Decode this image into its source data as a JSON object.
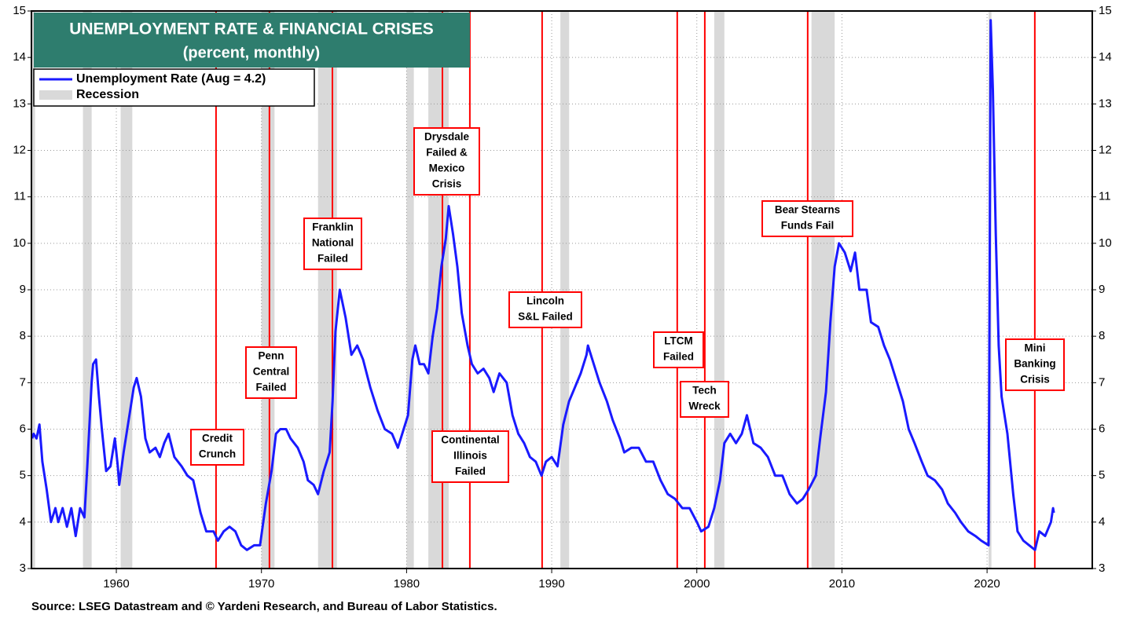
{
  "chart_data": {
    "type": "line",
    "title": "UNEMPLOYMENT RATE & FINANCIAL CRISES",
    "subtitle": "(percent, monthly)",
    "source": "Source: LSEG Datastream and © Yardeni Research, and Bureau of Labor Statistics.",
    "xlim": [
      1954.15,
      2027.25
    ],
    "ylim": [
      3,
      15
    ],
    "xticks": [
      1960,
      1970,
      1980,
      1990,
      2000,
      2010,
      2020
    ],
    "yticks": [
      3,
      4,
      5,
      6,
      7,
      8,
      9,
      10,
      11,
      12,
      13,
      14,
      15
    ],
    "grid": true,
    "x": [
      1954.2,
      1954.3,
      1954.5,
      1954.7,
      1954.9,
      1955.2,
      1955.5,
      1955.8,
      1956.0,
      1956.3,
      1956.6,
      1956.9,
      1957.2,
      1957.5,
      1957.8,
      1958.0,
      1958.3,
      1958.4,
      1958.6,
      1958.8,
      1959.0,
      1959.3,
      1959.6,
      1959.9,
      1960.1,
      1960.2,
      1960.5,
      1960.9,
      1961.2,
      1961.4,
      1961.7,
      1962.0,
      1962.3,
      1962.7,
      1963.0,
      1963.3,
      1963.6,
      1964.0,
      1964.5,
      1964.9,
      1965.3,
      1965.8,
      1966.2,
      1966.7,
      1967.0,
      1967.4,
      1967.8,
      1968.2,
      1968.6,
      1969.0,
      1969.5,
      1969.9,
      1970.3,
      1970.7,
      1971.0,
      1971.3,
      1971.7,
      1972.0,
      1972.5,
      1972.9,
      1973.2,
      1973.6,
      1973.9,
      1974.3,
      1974.7,
      1974.9,
      1975.1,
      1975.4,
      1975.8,
      1976.2,
      1976.6,
      1977.0,
      1977.5,
      1978.0,
      1978.5,
      1979.0,
      1979.4,
      1979.8,
      1980.1,
      1980.4,
      1980.6,
      1980.9,
      1981.2,
      1981.5,
      1981.8,
      1982.1,
      1982.4,
      1982.7,
      1982.9,
      1983.2,
      1983.5,
      1983.8,
      1984.2,
      1984.5,
      1984.9,
      1985.3,
      1985.7,
      1986.0,
      1986.4,
      1986.9,
      1987.3,
      1987.7,
      1988.1,
      1988.5,
      1988.9,
      1989.3,
      1989.6,
      1990.0,
      1990.4,
      1990.8,
      1991.2,
      1991.6,
      1992.0,
      1992.4,
      1992.5,
      1992.9,
      1993.3,
      1993.8,
      1994.2,
      1994.7,
      1995.0,
      1995.5,
      1996.0,
      1996.5,
      1997.0,
      1997.5,
      1998.0,
      1998.5,
      1999.0,
      1999.5,
      2000.0,
      2000.3,
      2000.8,
      2001.2,
      2001.6,
      2001.9,
      2002.3,
      2002.7,
      2003.1,
      2003.45,
      2003.9,
      2004.4,
      2004.9,
      2005.4,
      2005.9,
      2006.4,
      2006.9,
      2007.3,
      2007.7,
      2008.2,
      2008.5,
      2008.9,
      2009.2,
      2009.5,
      2009.8,
      2010.2,
      2010.6,
      2010.9,
      2011.2,
      2011.7,
      2012.0,
      2012.5,
      2012.9,
      2013.3,
      2013.8,
      2014.2,
      2014.6,
      2015.0,
      2015.5,
      2015.9,
      2016.4,
      2016.9,
      2017.3,
      2017.8,
      2018.2,
      2018.7,
      2019.2,
      2019.6,
      2020.1,
      2020.25,
      2020.4,
      2020.6,
      2020.8,
      2021.0,
      2021.4,
      2021.8,
      2022.1,
      2022.5,
      2022.9,
      2023.3,
      2023.6,
      2024.0,
      2024.4,
      2024.55,
      2024.6
    ],
    "series": [
      {
        "name": "Unemployment Rate (Aug = 4.2)",
        "color": "#1a1aff",
        "values": [
          5.8,
          5.9,
          5.8,
          6.1,
          5.3,
          4.7,
          4.0,
          4.3,
          4.0,
          4.3,
          3.9,
          4.3,
          3.7,
          4.3,
          4.1,
          5.2,
          7.0,
          7.4,
          7.5,
          6.7,
          6.0,
          5.1,
          5.2,
          5.8,
          5.2,
          4.8,
          5.5,
          6.3,
          6.9,
          7.1,
          6.7,
          5.8,
          5.5,
          5.6,
          5.4,
          5.7,
          5.9,
          5.4,
          5.2,
          5.0,
          4.9,
          4.2,
          3.8,
          3.8,
          3.6,
          3.8,
          3.9,
          3.8,
          3.5,
          3.4,
          3.5,
          3.5,
          4.4,
          5.1,
          5.9,
          6.0,
          6.0,
          5.8,
          5.6,
          5.3,
          4.9,
          4.8,
          4.6,
          5.1,
          5.5,
          6.6,
          8.1,
          9.0,
          8.4,
          7.6,
          7.8,
          7.5,
          6.9,
          6.4,
          6.0,
          5.9,
          5.6,
          6.0,
          6.3,
          7.5,
          7.8,
          7.4,
          7.4,
          7.2,
          8.0,
          8.6,
          9.5,
          10.1,
          10.8,
          10.2,
          9.5,
          8.5,
          7.8,
          7.4,
          7.2,
          7.3,
          7.1,
          6.8,
          7.2,
          7.0,
          6.3,
          5.9,
          5.7,
          5.4,
          5.3,
          5.0,
          5.3,
          5.4,
          5.2,
          6.1,
          6.6,
          6.9,
          7.2,
          7.6,
          7.8,
          7.4,
          7.0,
          6.6,
          6.2,
          5.8,
          5.5,
          5.6,
          5.6,
          5.3,
          5.3,
          4.9,
          4.6,
          4.5,
          4.3,
          4.3,
          4.0,
          3.8,
          3.9,
          4.3,
          4.9,
          5.7,
          5.9,
          5.7,
          5.9,
          6.3,
          5.7,
          5.6,
          5.4,
          5.0,
          5.0,
          4.6,
          4.4,
          4.5,
          4.7,
          5.0,
          5.8,
          6.8,
          8.3,
          9.5,
          10.0,
          9.8,
          9.4,
          9.8,
          9.0,
          9.0,
          8.3,
          8.2,
          7.8,
          7.5,
          7.0,
          6.6,
          6.0,
          5.7,
          5.3,
          5.0,
          4.9,
          4.7,
          4.4,
          4.2,
          4.0,
          3.8,
          3.7,
          3.6,
          3.5,
          14.8,
          13.3,
          10.2,
          7.8,
          6.7,
          5.9,
          4.6,
          3.8,
          3.6,
          3.5,
          3.4,
          3.8,
          3.7,
          4.0,
          4.3,
          4.2
        ]
      }
    ],
    "recessions": {
      "name": "Recession",
      "color": "#d9d9d9",
      "periods": [
        [
          1953.6,
          1954.4
        ],
        [
          1957.7,
          1958.3
        ],
        [
          1960.3,
          1961.1
        ],
        [
          1970.0,
          1970.9
        ],
        [
          1973.9,
          1975.2
        ],
        [
          1980.0,
          1980.5
        ],
        [
          1981.5,
          1982.9
        ],
        [
          1990.6,
          1991.2
        ],
        [
          2001.2,
          2001.9
        ],
        [
          2007.9,
          2009.5
        ],
        [
          2020.1,
          2020.3
        ]
      ]
    },
    "crises_color": "#ff0000",
    "crises": [
      {
        "x": 1966.87,
        "lines": [
          "Credit",
          "Crunch"
        ]
      },
      {
        "x": 1970.55,
        "lines": [
          "Penn",
          "Central",
          "Failed"
        ]
      },
      {
        "x": 1974.89,
        "lines": [
          "Franklin",
          "National",
          "Failed"
        ]
      },
      {
        "x": 1982.47,
        "lines": [
          "Drysdale",
          "Failed &",
          "Mexico",
          "Crisis"
        ]
      },
      {
        "x": 1984.36,
        "lines": [
          "Continental",
          "Illinois",
          "Failed"
        ]
      },
      {
        "x": 1989.34,
        "lines": [
          "Lincoln",
          "S&L Failed"
        ]
      },
      {
        "x": 1998.65,
        "lines": [
          "LTCM",
          "Failed"
        ]
      },
      {
        "x": 2000.55,
        "lines": [
          "Tech",
          "Wreck"
        ]
      },
      {
        "x": 2007.64,
        "lines": [
          "Bear Stearns",
          "Funds Fail"
        ]
      },
      {
        "x": 2023.29,
        "lines": [
          "Mini",
          "Banking",
          "Crisis"
        ]
      }
    ]
  }
}
